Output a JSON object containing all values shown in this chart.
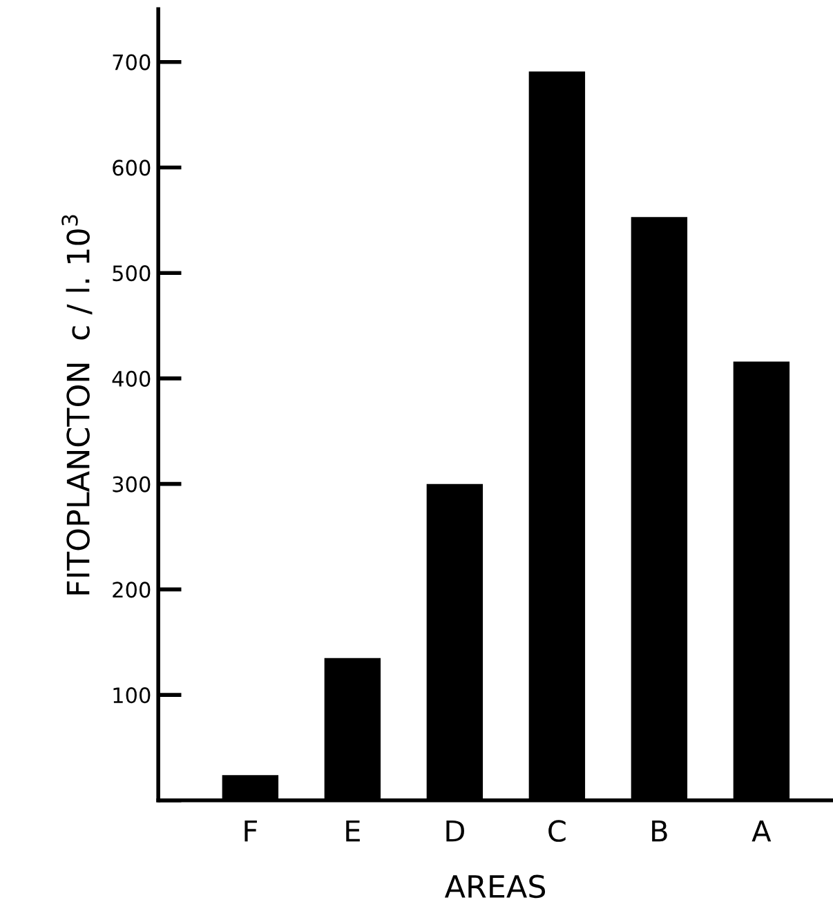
{
  "chart_data": {
    "type": "bar",
    "xlabel": "AREAS",
    "ylabel": "FITOPLANCTON  c / l. 10$^{3}$",
    "categories": [
      "F",
      "E",
      "D",
      "C",
      "B",
      "A"
    ],
    "values": [
      24,
      135,
      300,
      691,
      553,
      416
    ],
    "color": "#000000",
    "ylim": [
      0,
      750
    ],
    "yticks": [
      {
        "value": 0,
        "label": null
      },
      100,
      200,
      300,
      400,
      500,
      600,
      700
    ],
    "grid": false
  }
}
